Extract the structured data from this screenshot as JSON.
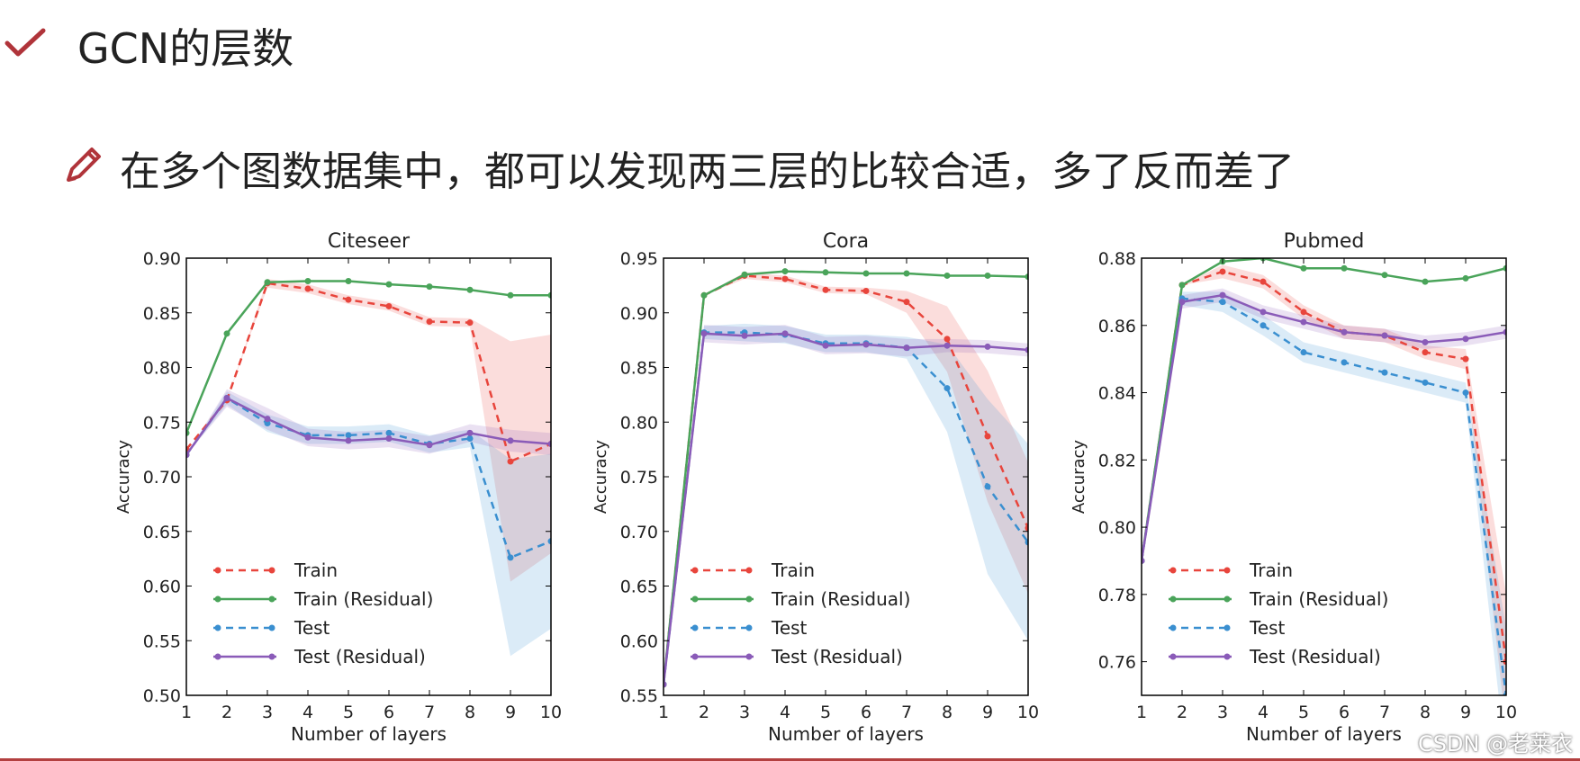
{
  "slide": {
    "title": "GCN的层数",
    "subtitle": "在多个图数据集中，都可以发现两三层的比较合适，多了反而差了",
    "watermark": "CSDN @老莱衣",
    "accent_color": "#b0343a"
  },
  "chart_data": [
    {
      "type": "line",
      "title": "Citeseer",
      "xlabel": "Number of layers",
      "ylabel": "Accuracy",
      "xlim": [
        1,
        10
      ],
      "ylim": [
        0.5,
        0.9
      ],
      "yticks": [
        "0.50",
        "0.55",
        "0.60",
        "0.65",
        "0.70",
        "0.75",
        "0.80",
        "0.85",
        "0.90"
      ],
      "xticks": [
        "1",
        "2",
        "3",
        "4",
        "5",
        "6",
        "7",
        "8",
        "9",
        "10"
      ],
      "legend_position": "lower-left",
      "x": [
        1,
        2,
        3,
        4,
        5,
        6,
        7,
        8,
        9,
        10
      ],
      "series": [
        {
          "name": "Train",
          "color": "#e8453c",
          "dash": true,
          "values": [
            0.725,
            0.77,
            0.877,
            0.872,
            0.862,
            0.856,
            0.842,
            0.841,
            0.714,
            0.73
          ],
          "band": [
            0,
            0,
            0.004,
            0.004,
            0.004,
            0.004,
            0.004,
            0.004,
            0.11,
            0.1
          ]
        },
        {
          "name": "Train (Residual)",
          "color": "#4aa45a",
          "dash": false,
          "values": [
            0.74,
            0.831,
            0.878,
            0.879,
            0.879,
            0.876,
            0.874,
            0.871,
            0.866,
            0.866
          ],
          "band": [
            0,
            0,
            0,
            0,
            0,
            0,
            0,
            0,
            0,
            0
          ]
        },
        {
          "name": "Test",
          "color": "#3a8fd0",
          "dash": true,
          "values": [
            0.72,
            0.772,
            0.749,
            0.738,
            0.738,
            0.74,
            0.73,
            0.735,
            0.626,
            0.641
          ],
          "band": [
            0,
            0.006,
            0.008,
            0.008,
            0.008,
            0.008,
            0.008,
            0.008,
            0.09,
            0.08
          ]
        },
        {
          "name": "Test (Residual)",
          "color": "#8a5bb8",
          "dash": false,
          "values": [
            0.72,
            0.772,
            0.753,
            0.736,
            0.733,
            0.735,
            0.729,
            0.74,
            0.733,
            0.73
          ],
          "band": [
            0,
            0.008,
            0.01,
            0.008,
            0.008,
            0.008,
            0.008,
            0.008,
            0.01,
            0.01
          ]
        }
      ]
    },
    {
      "type": "line",
      "title": "Cora",
      "xlabel": "Number of layers",
      "ylabel": "Accuracy",
      "xlim": [
        1,
        10
      ],
      "ylim": [
        0.55,
        0.95
      ],
      "yticks": [
        "0.55",
        "0.60",
        "0.65",
        "0.70",
        "0.75",
        "0.80",
        "0.85",
        "0.90",
        "0.95"
      ],
      "xticks": [
        "1",
        "2",
        "3",
        "4",
        "5",
        "6",
        "7",
        "8",
        "9",
        "10"
      ],
      "legend_position": "lower-left",
      "x": [
        1,
        2,
        3,
        4,
        5,
        6,
        7,
        8,
        9,
        10
      ],
      "series": [
        {
          "name": "Train",
          "color": "#e8453c",
          "dash": true,
          "values": [
            0.56,
            0.916,
            0.934,
            0.931,
            0.921,
            0.92,
            0.91,
            0.876,
            0.787,
            0.703
          ],
          "band": [
            0,
            0,
            0.003,
            0.003,
            0.003,
            0.003,
            0.01,
            0.03,
            0.06,
            0.06
          ]
        },
        {
          "name": "Train (Residual)",
          "color": "#4aa45a",
          "dash": false,
          "values": [
            0.56,
            0.916,
            0.935,
            0.938,
            0.937,
            0.936,
            0.936,
            0.934,
            0.934,
            0.933
          ],
          "band": [
            0,
            0,
            0,
            0,
            0,
            0,
            0,
            0,
            0,
            0
          ]
        },
        {
          "name": "Test",
          "color": "#3a8fd0",
          "dash": true,
          "values": [
            0.56,
            0.882,
            0.882,
            0.88,
            0.872,
            0.872,
            0.868,
            0.831,
            0.741,
            0.69
          ],
          "band": [
            0,
            0.006,
            0.008,
            0.008,
            0.008,
            0.008,
            0.01,
            0.04,
            0.08,
            0.09
          ]
        },
        {
          "name": "Test (Residual)",
          "color": "#8a5bb8",
          "dash": false,
          "values": [
            0.56,
            0.881,
            0.879,
            0.881,
            0.87,
            0.871,
            0.868,
            0.87,
            0.869,
            0.866
          ],
          "band": [
            0,
            0.008,
            0.008,
            0.008,
            0.008,
            0.008,
            0.008,
            0.006,
            0.006,
            0.006
          ]
        }
      ]
    },
    {
      "type": "line",
      "title": "Pubmed",
      "xlabel": "Number of layers",
      "ylabel": "Accuracy",
      "xlim": [
        1,
        10
      ],
      "ylim": [
        0.75,
        0.88
      ],
      "yticks": [
        "0.76",
        "0.78",
        "0.80",
        "0.82",
        "0.84",
        "0.86",
        "0.88"
      ],
      "xticks": [
        "1",
        "2",
        "3",
        "4",
        "5",
        "6",
        "7",
        "8",
        "9",
        "10"
      ],
      "legend_position": "lower-left",
      "x": [
        1,
        2,
        3,
        4,
        5,
        6,
        7,
        8,
        9,
        10
      ],
      "series": [
        {
          "name": "Train",
          "color": "#e8453c",
          "dash": true,
          "values": [
            0.79,
            0.872,
            0.876,
            0.873,
            0.864,
            0.858,
            0.857,
            0.852,
            0.85,
            0.76
          ],
          "band": [
            0,
            0,
            0.002,
            0.002,
            0.002,
            0.002,
            0.002,
            0.002,
            0.003,
            0.02
          ]
        },
        {
          "name": "Train (Residual)",
          "color": "#4aa45a",
          "dash": false,
          "values": [
            0.79,
            0.872,
            0.879,
            0.88,
            0.877,
            0.877,
            0.875,
            0.873,
            0.874,
            0.877
          ],
          "band": [
            0,
            0,
            0,
            0,
            0,
            0,
            0,
            0,
            0,
            0
          ]
        },
        {
          "name": "Test",
          "color": "#3a8fd0",
          "dash": true,
          "values": [
            0.79,
            0.868,
            0.867,
            0.86,
            0.852,
            0.849,
            0.846,
            0.843,
            0.84,
            0.75
          ],
          "band": [
            0,
            0.002,
            0.003,
            0.003,
            0.003,
            0.003,
            0.003,
            0.003,
            0.003,
            0.02
          ]
        },
        {
          "name": "Test (Residual)",
          "color": "#8a5bb8",
          "dash": false,
          "values": [
            0.79,
            0.867,
            0.869,
            0.864,
            0.861,
            0.858,
            0.857,
            0.855,
            0.856,
            0.858
          ],
          "band": [
            0,
            0.002,
            0.002,
            0.002,
            0.002,
            0.002,
            0.002,
            0.002,
            0.002,
            0.002
          ]
        }
      ]
    }
  ]
}
